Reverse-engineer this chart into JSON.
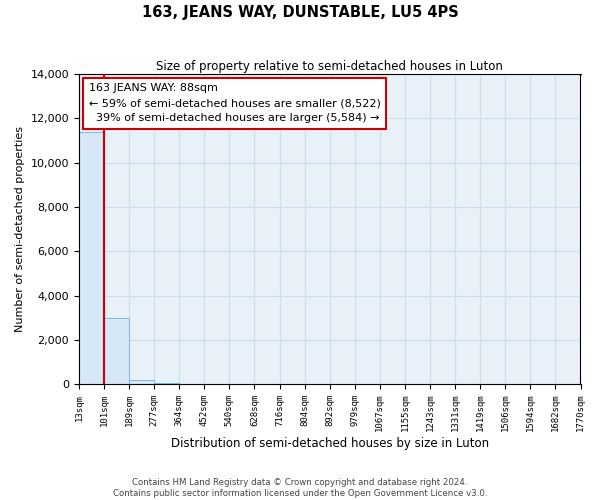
{
  "title": "163, JEANS WAY, DUNSTABLE, LU5 4PS",
  "subtitle": "Size of property relative to semi-detached houses in Luton",
  "xlabel": "Distribution of semi-detached houses by size in Luton",
  "ylabel": "Number of semi-detached properties",
  "bar_edges": [
    13,
    101,
    189,
    277,
    364,
    452,
    540,
    628,
    716,
    804,
    892,
    979,
    1067,
    1155,
    1243,
    1331,
    1419,
    1506,
    1594,
    1682,
    1770
  ],
  "bar_heights": [
    11400,
    3000,
    200,
    40,
    10,
    5,
    3,
    2,
    1,
    1,
    0,
    0,
    0,
    0,
    0,
    0,
    0,
    0,
    0,
    0
  ],
  "bar_color": "#d6e8f7",
  "bar_edge_color": "#7ab8e0",
  "property_size": 101,
  "pct_smaller": 59,
  "pct_larger": 39,
  "n_smaller": 8522,
  "n_larger": 5584,
  "annotation_box_color": "#ffffff",
  "annotation_box_edge": "#cc0000",
  "vline_color": "#cc0000",
  "ylim": [
    0,
    14000
  ],
  "yticks": [
    0,
    2000,
    4000,
    6000,
    8000,
    10000,
    12000,
    14000
  ],
  "grid_color": "#ccddee",
  "bg_color": "#e8f0f8",
  "footer1": "Contains HM Land Registry data © Crown copyright and database right 2024.",
  "footer2": "Contains public sector information licensed under the Open Government Licence v3.0."
}
